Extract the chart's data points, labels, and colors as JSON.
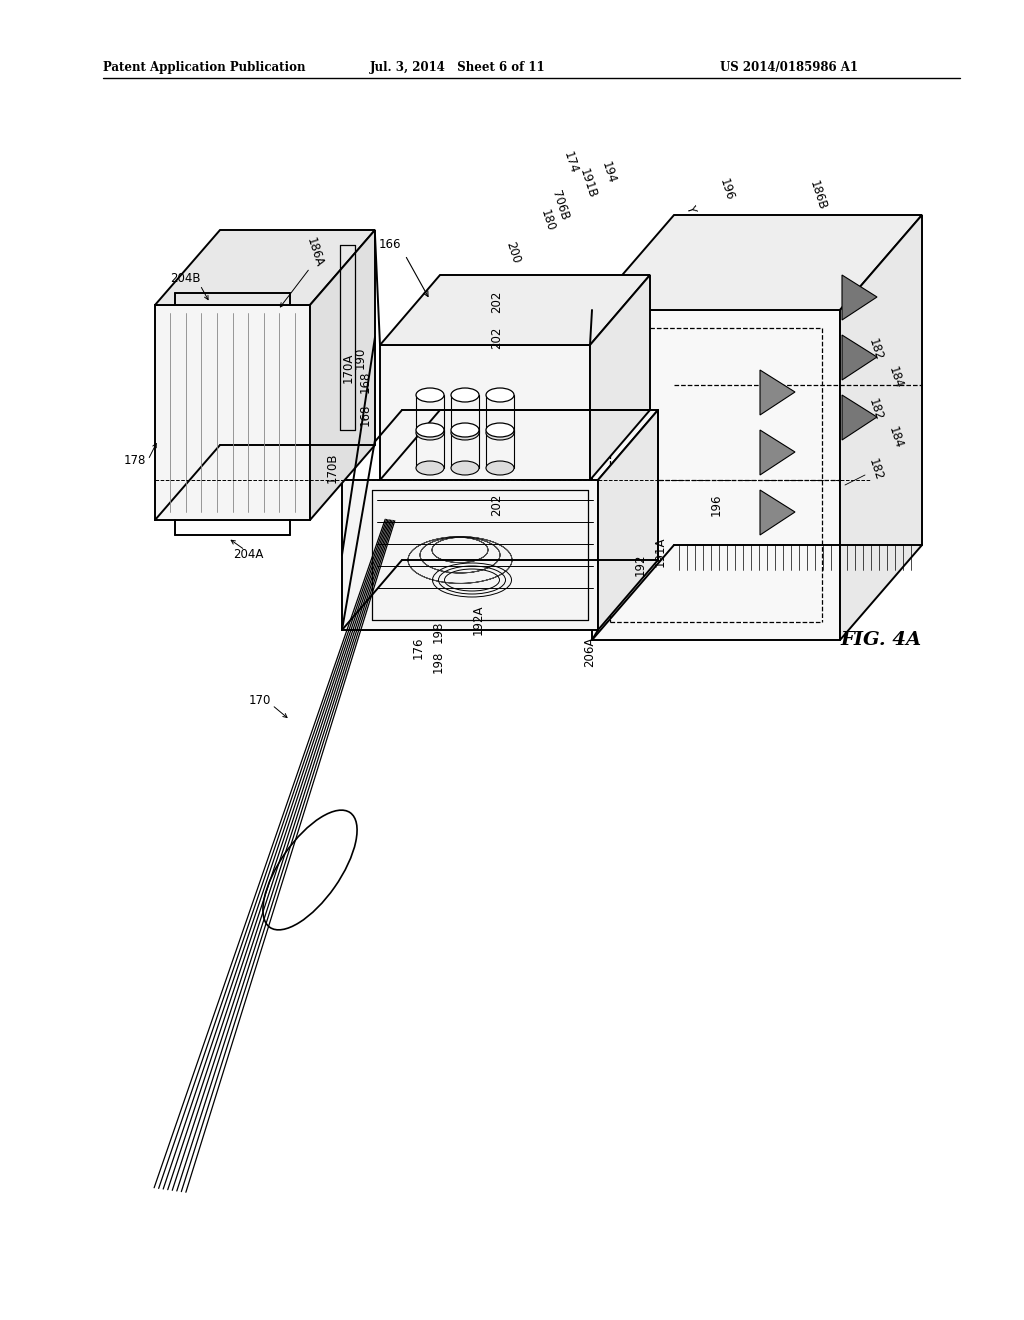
{
  "header_left": "Patent Application Publication",
  "header_mid": "Jul. 3, 2014   Sheet 6 of 11",
  "header_right": "US 2014/0185986 A1",
  "fig_label": "FIG. 4A",
  "bg_color": "#ffffff",
  "line_color": "#000000"
}
